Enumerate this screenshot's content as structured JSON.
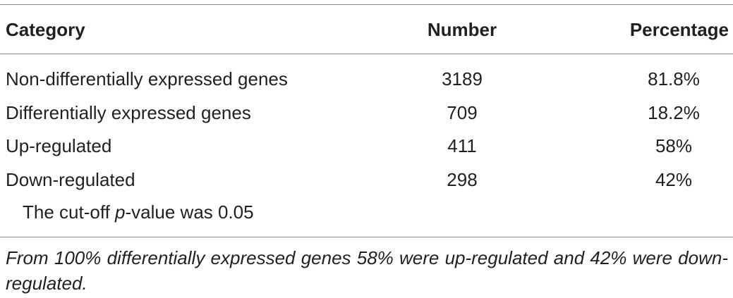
{
  "table": {
    "headers": [
      "Category",
      "Number",
      "Percentage"
    ],
    "rows": [
      [
        "Non-differentially expressed genes",
        "3189",
        "81.8%"
      ],
      [
        "Differentially expressed genes",
        "709",
        "18.2%"
      ],
      [
        "Up-regulated",
        "411",
        "58%"
      ],
      [
        "Down-regulated",
        "298",
        "42%"
      ]
    ],
    "note": [
      "The cut-off ",
      "p",
      "-value was 0.05"
    ]
  },
  "footnote": "From 100% differentially expressed genes 58% were up-regulated and 42% were down-regulated."
}
